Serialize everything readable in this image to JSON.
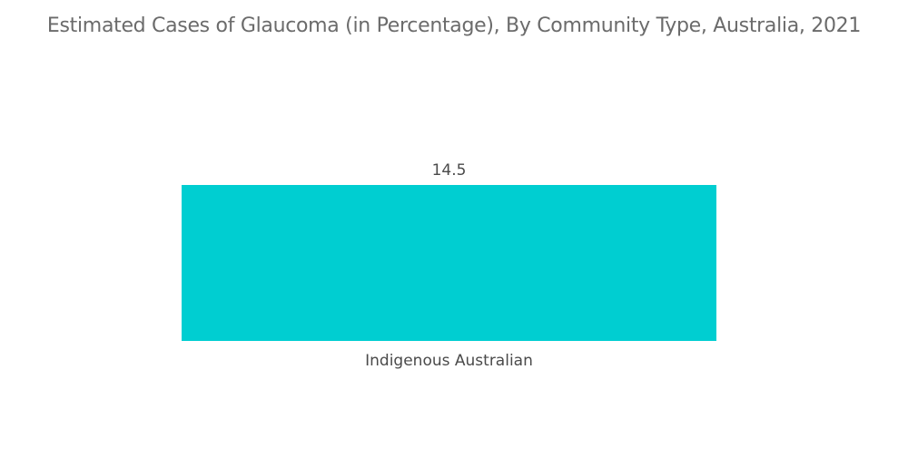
{
  "chart_data": {
    "type": "bar",
    "title": "Estimated Cases of Glaucoma (in Percentage), By Community Type, Australia, 2021",
    "categories": [
      "Indigenous Australian"
    ],
    "values": [
      14.5
    ],
    "data_labels": [
      "14.5"
    ],
    "xlabel": "",
    "ylabel": "",
    "ylim": [
      0,
      14.5
    ],
    "grid": false,
    "legend": "none",
    "colors": [
      "#00ced1"
    ]
  }
}
